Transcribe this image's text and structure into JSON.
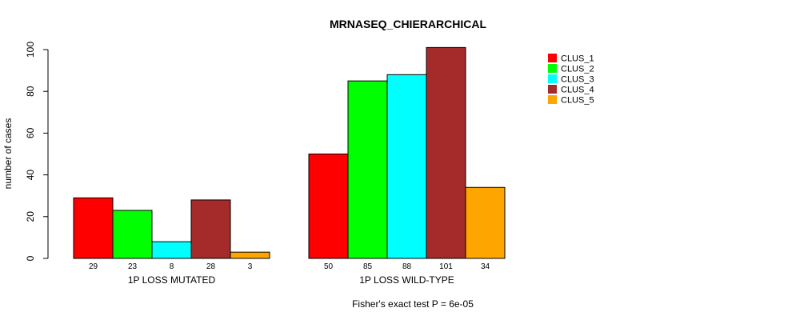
{
  "chart_data": {
    "type": "bar",
    "title": "MRNASEQ_CHIERARCHICAL",
    "ylabel": "number of cases",
    "ylim": [
      0,
      100
    ],
    "yticks": [
      0,
      20,
      40,
      60,
      80,
      100
    ],
    "groups": [
      "1P LOSS MUTATED",
      "1P LOSS WILD-TYPE"
    ],
    "series": [
      {
        "name": "CLUS_1",
        "color": "#ff0000",
        "values": [
          29,
          50
        ]
      },
      {
        "name": "CLUS_2",
        "color": "#00ff00",
        "values": [
          23,
          85
        ]
      },
      {
        "name": "CLUS_3",
        "color": "#00ffff",
        "values": [
          8,
          88
        ]
      },
      {
        "name": "CLUS_4",
        "color": "#a52a2a",
        "values": [
          28,
          101
        ]
      },
      {
        "name": "CLUS_5",
        "color": "#ffa500",
        "values": [
          3,
          34
        ]
      }
    ],
    "footnote": "Fisher's exact test P = 6e-05",
    "legend_position": "top-right"
  }
}
